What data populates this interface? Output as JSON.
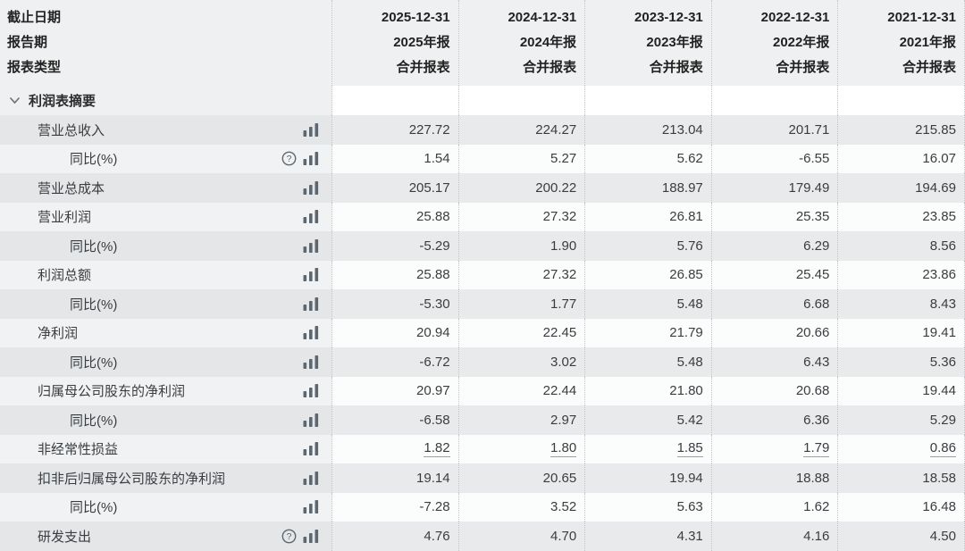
{
  "table": {
    "header": {
      "row_labels": [
        "截止日期",
        "报告期",
        "报表类型"
      ],
      "columns": [
        {
          "date": "2025-12-31",
          "period": "2025年报",
          "type": "合并报表"
        },
        {
          "date": "2024-12-31",
          "period": "2024年报",
          "type": "合并报表"
        },
        {
          "date": "2023-12-31",
          "period": "2023年报",
          "type": "合并报表"
        },
        {
          "date": "2022-12-31",
          "period": "2022年报",
          "type": "合并报表"
        },
        {
          "date": "2021-12-31",
          "period": "2021年报",
          "type": "合并报表"
        }
      ]
    },
    "section": {
      "label": "利润表摘要",
      "icon": "chevron-down-icon"
    },
    "rows": [
      {
        "label": "营业总收入",
        "indent": 1,
        "icons": [
          "bar-chart-icon"
        ],
        "values": [
          "227.72",
          "224.27",
          "213.04",
          "201.71",
          "215.85"
        ]
      },
      {
        "label": "同比(%)",
        "indent": 2,
        "icons": [
          "help-icon",
          "bar-chart-icon"
        ],
        "values": [
          "1.54",
          "5.27",
          "5.62",
          "-6.55",
          "16.07"
        ]
      },
      {
        "label": "营业总成本",
        "indent": 1,
        "icons": [
          "bar-chart-icon"
        ],
        "values": [
          "205.17",
          "200.22",
          "188.97",
          "179.49",
          "194.69"
        ]
      },
      {
        "label": "营业利润",
        "indent": 1,
        "icons": [
          "bar-chart-icon"
        ],
        "values": [
          "25.88",
          "27.32",
          "26.81",
          "25.35",
          "23.85"
        ]
      },
      {
        "label": "同比(%)",
        "indent": 2,
        "icons": [
          "bar-chart-icon"
        ],
        "values": [
          "-5.29",
          "1.90",
          "5.76",
          "6.29",
          "8.56"
        ]
      },
      {
        "label": "利润总额",
        "indent": 1,
        "icons": [
          "bar-chart-icon"
        ],
        "values": [
          "25.88",
          "27.32",
          "26.85",
          "25.45",
          "23.86"
        ]
      },
      {
        "label": "同比(%)",
        "indent": 2,
        "icons": [
          "bar-chart-icon"
        ],
        "values": [
          "-5.30",
          "1.77",
          "5.48",
          "6.68",
          "8.43"
        ]
      },
      {
        "label": "净利润",
        "indent": 1,
        "icons": [
          "bar-chart-icon"
        ],
        "values": [
          "20.94",
          "22.45",
          "21.79",
          "20.66",
          "19.41"
        ]
      },
      {
        "label": "同比(%)",
        "indent": 2,
        "icons": [
          "bar-chart-icon"
        ],
        "values": [
          "-6.72",
          "3.02",
          "5.48",
          "6.43",
          "5.36"
        ]
      },
      {
        "label": "归属母公司股东的净利润",
        "indent": 1,
        "icons": [
          "bar-chart-icon"
        ],
        "values": [
          "20.97",
          "22.44",
          "21.80",
          "20.68",
          "19.44"
        ]
      },
      {
        "label": "同比(%)",
        "indent": 2,
        "icons": [
          "bar-chart-icon"
        ],
        "values": [
          "-6.58",
          "2.97",
          "5.42",
          "6.36",
          "5.29"
        ]
      },
      {
        "label": "非经常性损益",
        "indent": 1,
        "icons": [
          "bar-chart-icon"
        ],
        "underline": true,
        "values": [
          "1.82",
          "1.80",
          "1.85",
          "1.79",
          "0.86"
        ]
      },
      {
        "label": "扣非后归属母公司股东的净利润",
        "indent": 1,
        "icons": [
          "bar-chart-icon"
        ],
        "values": [
          "19.14",
          "20.65",
          "19.94",
          "18.88",
          "18.58"
        ]
      },
      {
        "label": "同比(%)",
        "indent": 2,
        "icons": [
          "bar-chart-icon"
        ],
        "values": [
          "-7.28",
          "3.52",
          "5.63",
          "1.62",
          "16.48"
        ]
      },
      {
        "label": "研发支出",
        "indent": 1,
        "icons": [
          "help-icon",
          "bar-chart-icon"
        ],
        "values": [
          "4.76",
          "4.70",
          "4.31",
          "4.16",
          "4.50"
        ]
      }
    ]
  },
  "colors": {
    "negative_value": "#d01a1a",
    "icon_gray": "#5c6770",
    "header_bg": "#eff0f1",
    "row_gray": "#e9eaeb",
    "row_light": "#fbfcfc"
  }
}
